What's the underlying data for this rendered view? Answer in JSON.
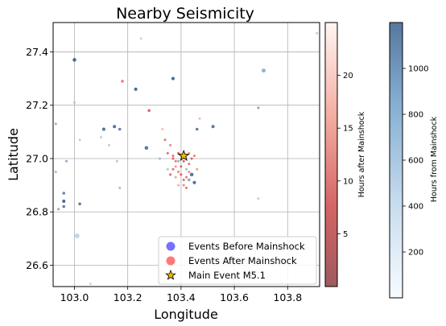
{
  "chart_data": {
    "type": "scatter",
    "title": "Nearby Seismicity",
    "xlabel": "Longitude",
    "ylabel": "Latitude",
    "xlim": [
      102.92,
      103.92
    ],
    "ylim": [
      26.52,
      27.51
    ],
    "xticks": [
      103.0,
      103.2,
      103.4,
      103.6,
      103.8
    ],
    "xtick_labels": [
      "103.0",
      "103.2",
      "103.4",
      "103.6",
      "103.8"
    ],
    "yticks": [
      26.6,
      26.8,
      27.0,
      27.2,
      27.4
    ],
    "ytick_labels": [
      "26.6",
      "26.8",
      "27.0",
      "27.2",
      "27.4"
    ],
    "grid": true,
    "legend_position": "lower-right",
    "legend": [
      {
        "label": "Events Before Mainshock",
        "marker": "circle",
        "color": "#5a5aff"
      },
      {
        "label": "Events After Mainshock",
        "marker": "circle",
        "color": "#ff6060"
      },
      {
        "label": "Main Event M5.1",
        "marker": "star",
        "color": "#f5b800"
      }
    ],
    "colorbars": [
      {
        "label": "Hours after Mainshock",
        "range": [
          0,
          25
        ],
        "ticks": [
          5,
          10,
          15,
          20
        ],
        "tick_labels": [
          "5",
          "10",
          "15",
          "20"
        ],
        "colormap": "Reds reversed",
        "color_low": "#9e5a5e",
        "color_high": "#fff6f3"
      },
      {
        "label": "Hours from Mainshock",
        "range": [
          0,
          1200
        ],
        "ticks": [
          200,
          400,
          600,
          800,
          1000
        ],
        "tick_labels": [
          "200",
          "400",
          "600",
          "800",
          "1000"
        ],
        "colormap": "Blues",
        "color_low": "#f7fbff",
        "color_high": "#56789f"
      }
    ],
    "main_event": {
      "x": 103.41,
      "y": 27.01
    },
    "series": [
      {
        "kind": "before",
        "points": [
          {
            "x": 103.0,
            "y": 27.37,
            "h": 1150,
            "s": 2
          },
          {
            "x": 103.0,
            "y": 27.21,
            "h": 300,
            "s": 1.5
          },
          {
            "x": 102.93,
            "y": 27.13,
            "h": 500,
            "s": 1.5
          },
          {
            "x": 102.97,
            "y": 26.99,
            "h": 600,
            "s": 1.5
          },
          {
            "x": 102.93,
            "y": 26.95,
            "h": 400,
            "s": 1.5
          },
          {
            "x": 102.96,
            "y": 26.87,
            "h": 800,
            "s": 1.5
          },
          {
            "x": 102.96,
            "y": 26.84,
            "h": 1150,
            "s": 1.8
          },
          {
            "x": 102.94,
            "y": 26.81,
            "h": 600,
            "s": 1.5
          },
          {
            "x": 102.96,
            "y": 26.82,
            "h": 900,
            "s": 1.5
          },
          {
            "x": 103.02,
            "y": 26.83,
            "h": 1000,
            "s": 1.5
          },
          {
            "x": 103.01,
            "y": 26.71,
            "h": 150,
            "s": 3
          },
          {
            "x": 103.02,
            "y": 27.07,
            "h": 200,
            "s": 1.5
          },
          {
            "x": 103.1,
            "y": 27.08,
            "h": 200,
            "s": 1.5
          },
          {
            "x": 103.13,
            "y": 27.05,
            "h": 200,
            "s": 1.5
          },
          {
            "x": 103.15,
            "y": 27.12,
            "h": 1000,
            "s": 1.8
          },
          {
            "x": 103.11,
            "y": 27.11,
            "h": 1050,
            "s": 1.8
          },
          {
            "x": 103.17,
            "y": 27.11,
            "h": 800,
            "s": 1.5
          },
          {
            "x": 103.17,
            "y": 26.89,
            "h": 400,
            "s": 1.5
          },
          {
            "x": 103.16,
            "y": 26.99,
            "h": 300,
            "s": 1.5
          },
          {
            "x": 103.23,
            "y": 27.26,
            "h": 1150,
            "s": 1.8
          },
          {
            "x": 103.25,
            "y": 27.45,
            "h": 150,
            "s": 1.5
          },
          {
            "x": 103.37,
            "y": 27.3,
            "h": 1150,
            "s": 1.8
          },
          {
            "x": 103.27,
            "y": 27.04,
            "h": 1000,
            "s": 2
          },
          {
            "x": 103.32,
            "y": 27.0,
            "h": 400,
            "s": 1.5
          },
          {
            "x": 103.46,
            "y": 27.11,
            "h": 900,
            "s": 1.5
          },
          {
            "x": 103.52,
            "y": 27.12,
            "h": 900,
            "s": 1.8
          },
          {
            "x": 103.44,
            "y": 26.94,
            "h": 1000,
            "s": 2
          },
          {
            "x": 103.43,
            "y": 26.92,
            "h": 600,
            "s": 1.8
          },
          {
            "x": 103.45,
            "y": 26.91,
            "h": 1100,
            "s": 1.8
          },
          {
            "x": 103.39,
            "y": 26.99,
            "h": 500,
            "s": 1.5
          },
          {
            "x": 103.42,
            "y": 26.96,
            "h": 400,
            "s": 1.5
          },
          {
            "x": 103.35,
            "y": 26.96,
            "h": 300,
            "s": 1.5
          },
          {
            "x": 103.71,
            "y": 27.33,
            "h": 500,
            "s": 2.5
          },
          {
            "x": 103.69,
            "y": 27.19,
            "h": 700,
            "s": 1.5
          },
          {
            "x": 103.69,
            "y": 26.85,
            "h": 200,
            "s": 1.5
          },
          {
            "x": 103.91,
            "y": 27.47,
            "h": 200,
            "s": 1.5
          },
          {
            "x": 103.06,
            "y": 26.53,
            "h": 150,
            "s": 1.5
          }
        ]
      },
      {
        "kind": "after",
        "points": [
          {
            "x": 103.18,
            "y": 27.29,
            "h": 10,
            "s": 1.8
          },
          {
            "x": 103.28,
            "y": 27.18,
            "h": 5,
            "s": 1.8
          },
          {
            "x": 103.34,
            "y": 27.07,
            "h": 8,
            "s": 1.5
          },
          {
            "x": 103.36,
            "y": 27.05,
            "h": 12,
            "s": 1.5
          },
          {
            "x": 103.35,
            "y": 27.02,
            "h": 6,
            "s": 1.5
          },
          {
            "x": 103.37,
            "y": 27.0,
            "h": 4,
            "s": 1.5
          },
          {
            "x": 103.38,
            "y": 26.99,
            "h": 9,
            "s": 1.5
          },
          {
            "x": 103.38,
            "y": 26.97,
            "h": 15,
            "s": 1.5
          },
          {
            "x": 103.37,
            "y": 26.96,
            "h": 7,
            "s": 1.5
          },
          {
            "x": 103.39,
            "y": 26.95,
            "h": 11,
            "s": 1.5
          },
          {
            "x": 103.4,
            "y": 26.94,
            "h": 3,
            "s": 1.5
          },
          {
            "x": 103.38,
            "y": 26.93,
            "h": 18,
            "s": 1.5
          },
          {
            "x": 103.41,
            "y": 26.92,
            "h": 6,
            "s": 1.5
          },
          {
            "x": 103.42,
            "y": 26.93,
            "h": 9,
            "s": 1.5
          },
          {
            "x": 103.43,
            "y": 26.95,
            "h": 13,
            "s": 1.5
          },
          {
            "x": 103.4,
            "y": 26.97,
            "h": 4,
            "s": 1.5
          },
          {
            "x": 103.43,
            "y": 26.98,
            "h": 8,
            "s": 1.5
          },
          {
            "x": 103.44,
            "y": 27.0,
            "h": 5,
            "s": 1.5
          },
          {
            "x": 103.45,
            "y": 27.01,
            "h": 10,
            "s": 1.5
          },
          {
            "x": 103.43,
            "y": 27.02,
            "h": 14,
            "s": 1.5
          },
          {
            "x": 103.39,
            "y": 27.02,
            "h": 3,
            "s": 1.5
          },
          {
            "x": 103.37,
            "y": 27.01,
            "h": 7,
            "s": 1.5
          },
          {
            "x": 103.41,
            "y": 26.9,
            "h": 12,
            "s": 1.5
          },
          {
            "x": 103.39,
            "y": 26.9,
            "h": 20,
            "s": 1.5
          },
          {
            "x": 103.42,
            "y": 26.89,
            "h": 8,
            "s": 1.5
          },
          {
            "x": 103.36,
            "y": 26.94,
            "h": 5,
            "s": 1.5
          },
          {
            "x": 103.46,
            "y": 26.96,
            "h": 16,
            "s": 1.5
          },
          {
            "x": 103.41,
            "y": 26.99,
            "h": 2,
            "s": 1.5
          },
          {
            "x": 103.47,
            "y": 27.15,
            "h": 22,
            "s": 1.5
          },
          {
            "x": 103.33,
            "y": 27.11,
            "h": 23,
            "s": 1.5
          }
        ]
      }
    ]
  }
}
